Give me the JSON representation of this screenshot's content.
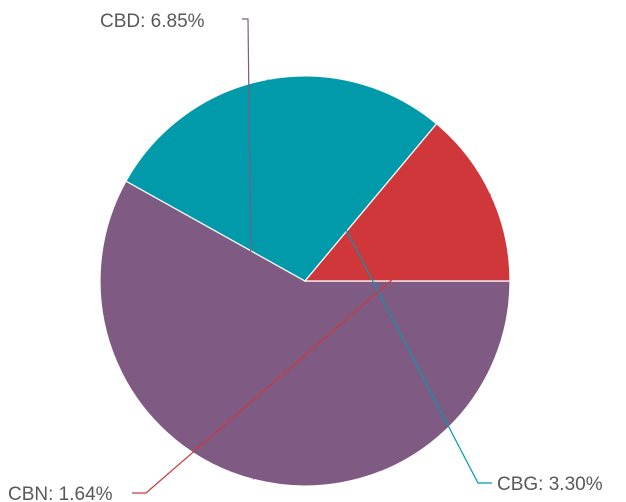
{
  "chart_data": {
    "type": "pie",
    "title": "",
    "slices": [
      {
        "name": "CBD",
        "value": 6.85,
        "label": "CBD: 6.85%",
        "color": "#7f5a83"
      },
      {
        "name": "CBG",
        "value": 3.3,
        "label": "CBG: 3.30%",
        "color": "#009aab"
      },
      {
        "name": "CBN",
        "value": 1.64,
        "label": "CBN: 1.64%",
        "color": "#d0373b"
      }
    ],
    "legend": "none",
    "start_angle_deg": 0,
    "direction": "clockwise"
  }
}
